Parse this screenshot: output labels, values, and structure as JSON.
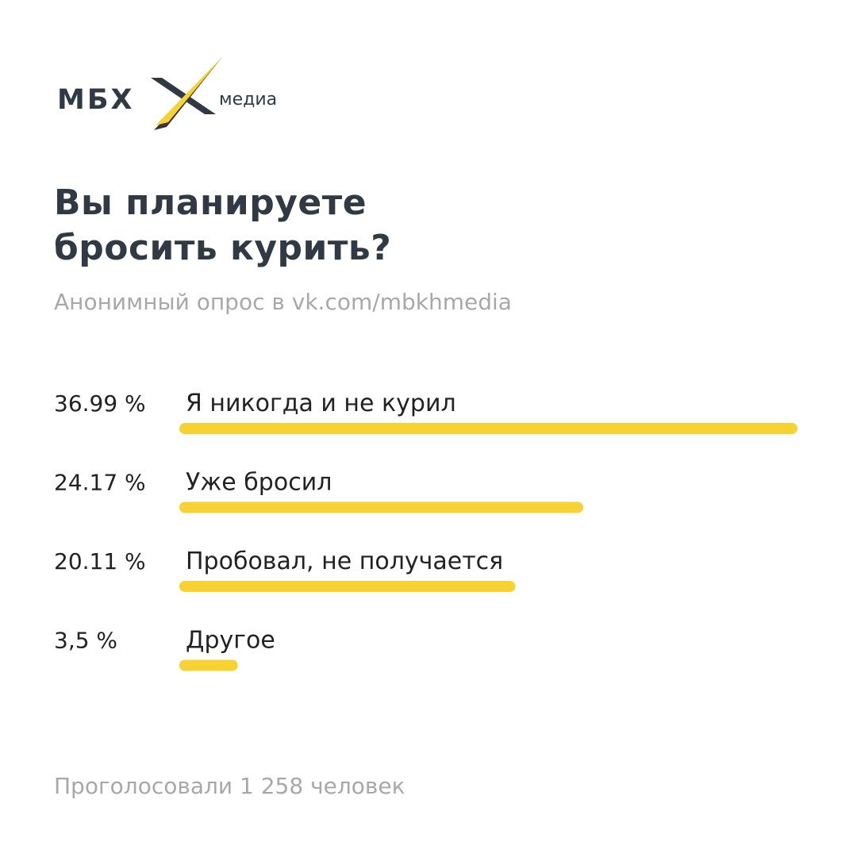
{
  "brand": {
    "name": "МБХ",
    "sub": "медиа",
    "color_dark": "#2f3a45",
    "color_accent": "#f7d232",
    "color_accent_shadow": "#3a3530"
  },
  "title_lines": [
    "Вы планируете",
    "бросить курить?"
  ],
  "subtitle": "Анонимный опрос в vk.com/mbkhmedia",
  "footer": "Проголосовали 1 258 человек",
  "chart_data": {
    "type": "bar",
    "orientation": "horizontal",
    "categories": [
      "Я никогда и не курил",
      "Уже бросил",
      "Пробовал, не получается",
      "Другое"
    ],
    "values": [
      36.99,
      24.17,
      20.11,
      3.5
    ],
    "value_labels": [
      "36.99 %",
      "24.17 %",
      "20.11 %",
      "3,5 %"
    ],
    "bar_color": "#f7d232",
    "title": "",
    "xlabel": "",
    "ylabel": ""
  }
}
